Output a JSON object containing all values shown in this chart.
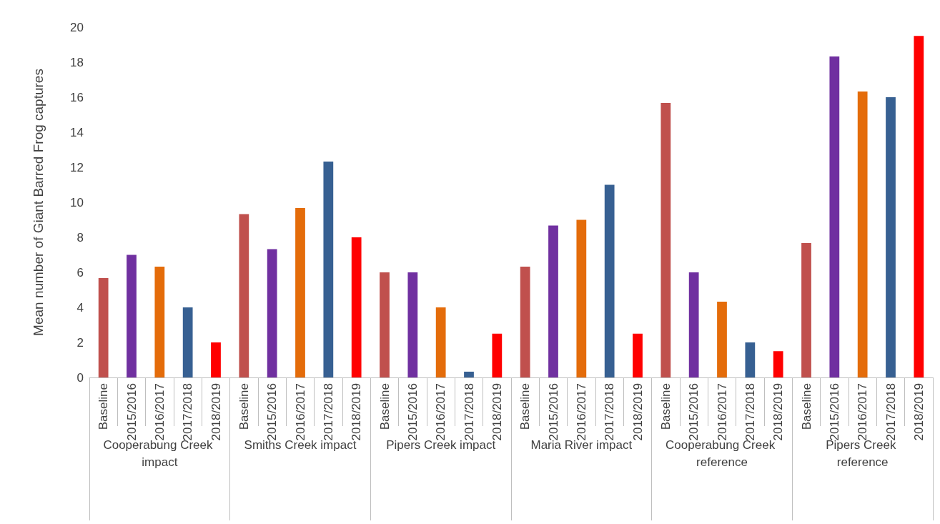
{
  "chart_data": {
    "type": "bar",
    "ylabel": "Mean number of Giant Barred Frog captures",
    "categories": [
      "Baseline",
      "2015/2016",
      "2016/2017",
      "2017/2018",
      "2018/2019",
      "Baseline",
      "2015/2016",
      "2016/2017",
      "2017/2018",
      "2018/2019",
      "Baseline",
      "2015/2016",
      "2016/2017",
      "2017/2018",
      "2018/2019",
      "Baseline",
      "2015/2016",
      "2016/2017",
      "2017/2018",
      "2018/2019",
      "Baseline",
      "2015/2016",
      "2016/2017",
      "2017/2018",
      "2018/2019",
      "Baseline",
      "2015/2016",
      "2016/2017",
      "2017/2018",
      "2018/2019"
    ],
    "values": [
      5.67,
      7,
      6.33,
      4,
      2,
      9.33,
      7.33,
      9.67,
      12.33,
      8,
      6,
      6,
      4,
      0.33,
      2.5,
      6.33,
      8.67,
      9,
      11,
      2.5,
      15.67,
      6,
      4.33,
      2,
      1.5,
      7.67,
      18.33,
      16.33,
      16,
      19.5
    ],
    "colors": [
      "#c0504d",
      "#7030a0",
      "#e46c0a",
      "#376092",
      "#ff0000",
      "#c0504d",
      "#7030a0",
      "#e46c0a",
      "#376092",
      "#ff0000",
      "#c0504d",
      "#7030a0",
      "#e46c0a",
      "#376092",
      "#ff0000",
      "#c0504d",
      "#7030a0",
      "#e46c0a",
      "#376092",
      "#ff0000",
      "#c0504d",
      "#7030a0",
      "#e46c0a",
      "#376092",
      "#ff0000",
      "#c0504d",
      "#7030a0",
      "#e46c0a",
      "#376092",
      "#ff0000"
    ],
    "annotations": [
      "Cooperabung Creek impact",
      "Smiths Creek impact",
      "Pipers Creek impact",
      "Maria River impact",
      "Cooperabung Creek reference",
      "Pipers Creek reference"
    ],
    "ylim": [
      0,
      20
    ],
    "yticks": [
      0,
      2,
      4,
      6,
      8,
      10,
      12,
      14,
      16,
      18,
      20
    ],
    "grid": false
  }
}
